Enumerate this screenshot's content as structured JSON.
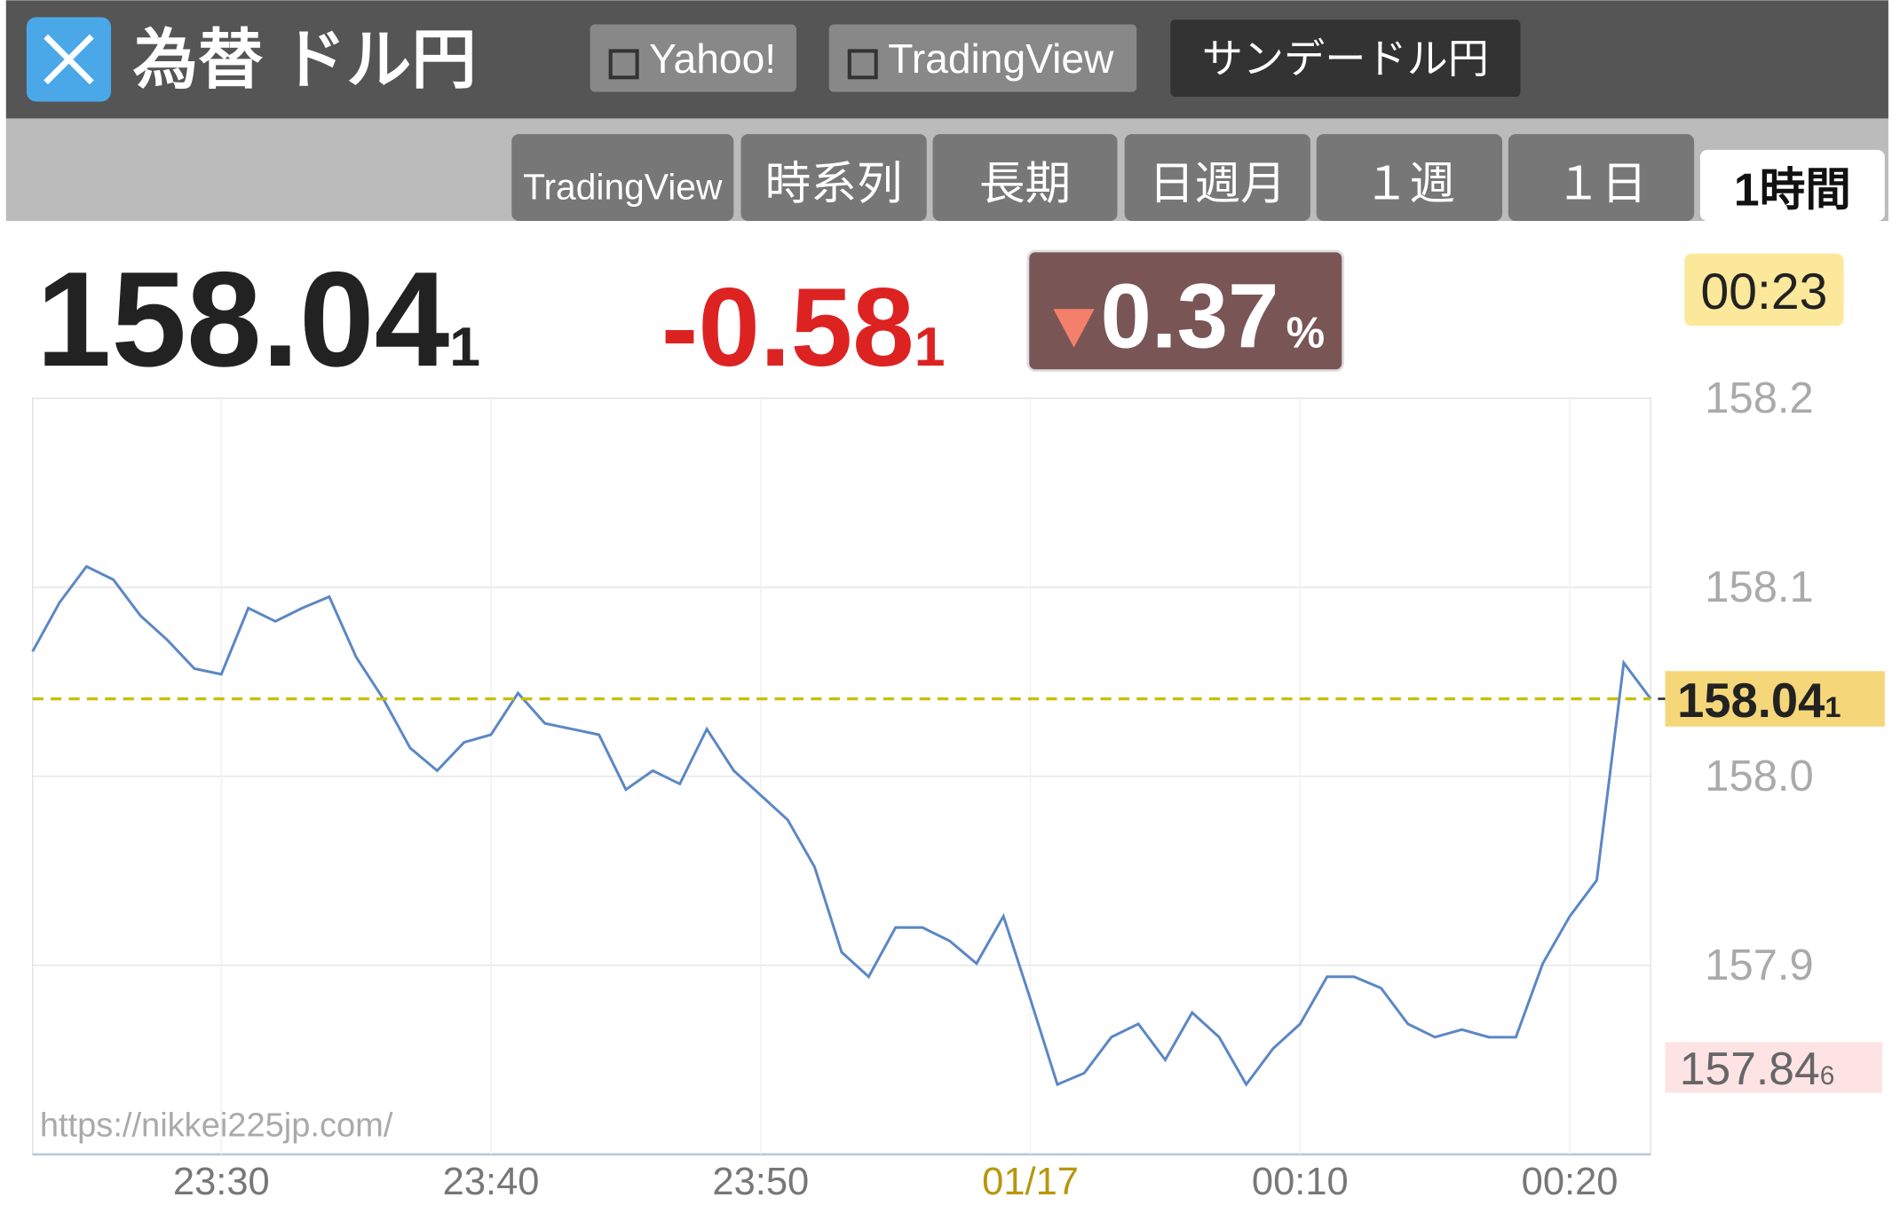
{
  "header": {
    "title": "為替 ドル円",
    "links": [
      "Yahoo!",
      "TradingView",
      "サンデードル円"
    ]
  },
  "tabs": {
    "items": [
      "TradingView",
      "時系列",
      "長期",
      "日週月",
      "１週",
      "１日",
      "1時間"
    ],
    "active": 6
  },
  "quote": {
    "price": "158.04",
    "price_suffix": "1",
    "change": "-0.58",
    "change_suffix": "1",
    "percent": "0.37",
    "percent_unit": "%",
    "time": "00:23"
  },
  "chart_data": {
    "type": "line",
    "watermark": "https://nikkei225jp.com/",
    "x": [
      "23:23",
      "23:24",
      "23:25",
      "23:26",
      "23:27",
      "23:28",
      "23:29",
      "23:30",
      "23:31",
      "23:32",
      "23:33",
      "23:34",
      "23:35",
      "23:36",
      "23:37",
      "23:38",
      "23:39",
      "23:40",
      "23:41",
      "23:42",
      "23:43",
      "23:44",
      "23:45",
      "23:46",
      "23:47",
      "23:48",
      "23:49",
      "23:50",
      "23:51",
      "23:52",
      "23:53",
      "23:54",
      "23:55",
      "23:56",
      "23:57",
      "23:58",
      "23:59",
      "00:00",
      "00:01",
      "00:02",
      "00:03",
      "00:04",
      "00:05",
      "00:06",
      "00:07",
      "00:08",
      "00:09",
      "00:10",
      "00:11",
      "00:12",
      "00:13",
      "00:14",
      "00:15",
      "00:16",
      "00:17",
      "00:18",
      "00:19",
      "00:20",
      "00:21",
      "00:22",
      "00:23"
    ],
    "series": [
      {
        "color": "#5b87c5",
        "values": [
          158.066,
          158.092,
          158.111,
          158.104,
          158.085,
          158.072,
          158.057,
          158.054,
          158.089,
          158.082,
          158.089,
          158.095,
          158.063,
          158.041,
          158.015,
          158.003,
          158.018,
          158.022,
          158.044,
          158.028,
          158.025,
          158.022,
          157.993,
          158.003,
          157.996,
          158.025,
          158.003,
          157.99,
          157.977,
          157.952,
          157.907,
          157.894,
          157.92,
          157.92,
          157.913,
          157.901,
          157.926,
          157.882,
          157.837,
          157.843,
          157.862,
          157.869,
          157.85,
          157.875,
          157.862,
          157.837,
          157.856,
          157.869,
          157.894,
          157.894,
          157.888,
          157.869,
          157.862,
          157.866,
          157.862,
          157.862,
          157.901,
          157.926,
          157.945,
          158.06,
          158.041
        ]
      }
    ],
    "xticks": [
      "23:30",
      "23:40",
      "23:50",
      {
        "value": "00:00",
        "label": "01/17"
      },
      "00:10",
      "00:20"
    ],
    "ylim": [
      157.8,
      158.2
    ],
    "yticks": [
      157.9,
      {
        "value": 158,
        "label": "158.0"
      },
      158.1,
      158.2
    ],
    "grid": true,
    "reference": {
      "value": 158.041,
      "label": "158.04",
      "label_suffix": "1",
      "color": "#c8c000"
    },
    "low": {
      "value": 157.846,
      "label": "157.84",
      "label_suffix": "6"
    }
  }
}
